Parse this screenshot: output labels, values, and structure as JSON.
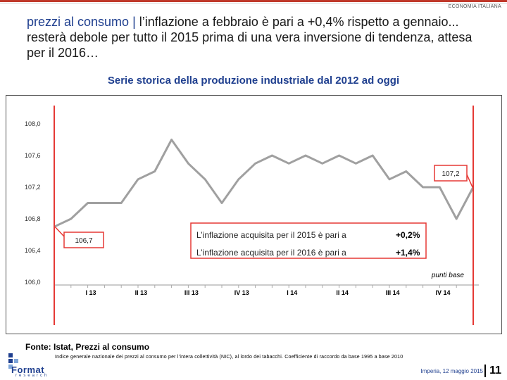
{
  "header": {
    "section_label": "ECONOMIA ITALIANA",
    "title_lead": "prezzi al consumo",
    "title_sep": " | ",
    "title_rest": "l’inflazione a febbraio è pari a +0,4% rispetto a gennaio... resterà debole per tutto il 2015 prima di una vera inversione di tendenza, attesa per il 2016…"
  },
  "chart_data": {
    "type": "line",
    "title": "Serie storica della produzione industriale dal 2012 ad oggi",
    "ylim": [
      106.0,
      108.0
    ],
    "y_ticks": [
      "106,0",
      "106,4",
      "106,8",
      "107,2",
      "107,6",
      "108,0"
    ],
    "y_tick_values": [
      106.0,
      106.4,
      106.8,
      107.2,
      107.6,
      108.0
    ],
    "x_ticks": [
      "I 13",
      "II 13",
      "III 13",
      "IV 13",
      "I 14",
      "II 14",
      "III 14",
      "IV 14"
    ],
    "series": [
      {
        "name": "Indice NIC",
        "color": "#a0a0a0",
        "values": [
          106.7,
          106.8,
          107.0,
          107.0,
          107.0,
          107.3,
          107.4,
          107.8,
          107.5,
          107.3,
          107.0,
          107.3,
          107.5,
          107.6,
          107.5,
          107.6,
          107.5,
          107.6,
          107.5,
          107.6,
          107.3,
          107.4,
          107.2,
          107.2,
          106.8,
          107.2
        ]
      }
    ],
    "highlight_color": "#e53935",
    "start_label": "106,7",
    "end_label": "107,2",
    "annotations": [
      {
        "text": "L’inflazione acquisita per il 2015 è pari a",
        "value": "+0,2%"
      },
      {
        "text": "L’inflazione acquisita per il 2016 è pari a",
        "value": "+1,4%"
      }
    ],
    "unit_note": "punti base"
  },
  "footer": {
    "source": "Fonte: Istat, Prezzi al consumo",
    "note": "Indice generale nazionale dei prezzi al consumo per l’intera collettività (NIC), al lordo dei tabacchi. Coefficiente di raccordo da base 1995 a base 2010",
    "place_date": "Imperia, 12 maggio 2015",
    "page_number": "11",
    "logo_word": "Format",
    "logo_sub": "research"
  }
}
